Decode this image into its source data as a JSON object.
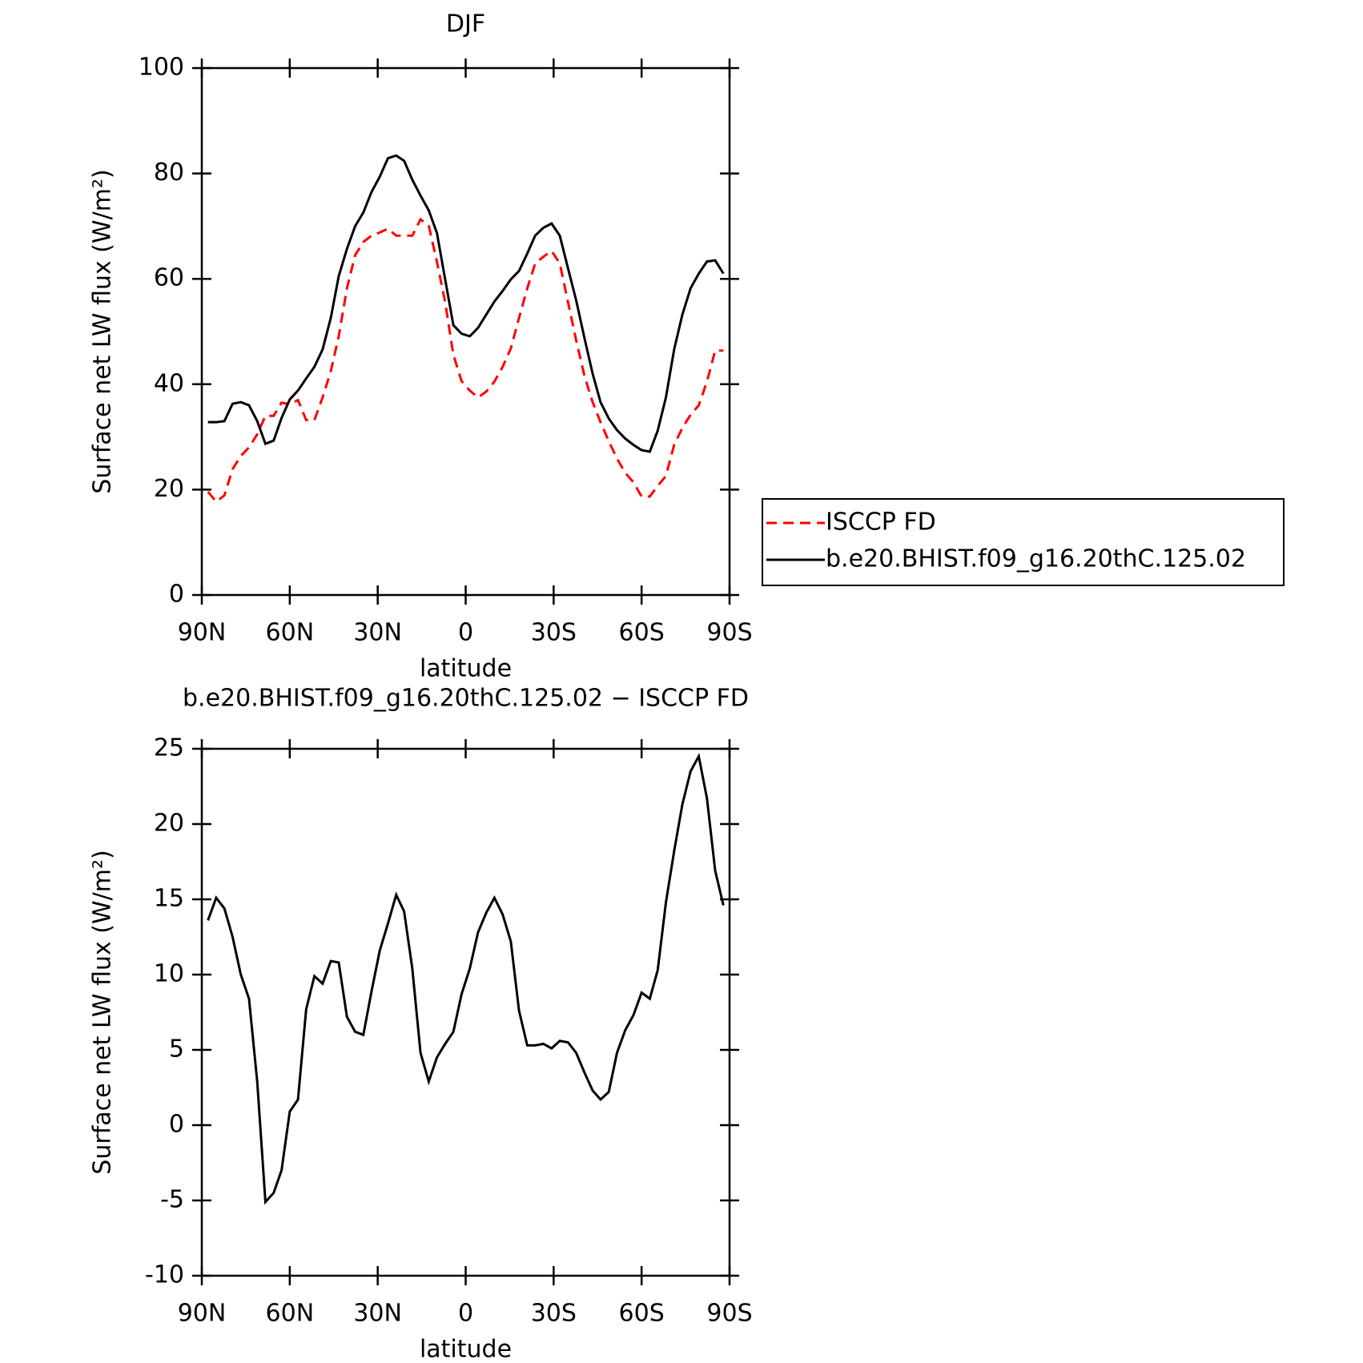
{
  "chart_data": [
    {
      "type": "line",
      "title": "DJF",
      "xlabel": "latitude",
      "ylabel": "Surface net LW flux (W/m²)",
      "x": [
        87.9,
        85.1,
        82.3,
        79.5,
        76.7,
        73.9,
        71.1,
        68.3,
        65.5,
        62.8,
        60.0,
        57.2,
        54.4,
        51.6,
        48.8,
        46.0,
        43.3,
        40.5,
        37.7,
        34.9,
        32.1,
        29.3,
        26.5,
        23.7,
        21.0,
        18.2,
        15.4,
        12.6,
        9.8,
        7.0,
        4.2,
        1.4,
        -1.4,
        -4.2,
        -7.0,
        -9.8,
        -12.6,
        -15.4,
        -18.2,
        -21.0,
        -23.7,
        -26.5,
        -29.3,
        -32.1,
        -34.9,
        -37.7,
        -40.5,
        -43.3,
        -46.0,
        -48.8,
        -51.6,
        -54.4,
        -57.2,
        -60.0,
        -62.8,
        -65.5,
        -68.3,
        -71.1,
        -73.9,
        -76.7,
        -79.5,
        -82.3,
        -85.1,
        -87.9
      ],
      "series": [
        {
          "name": "ISCCP FD",
          "color": "#ff0000",
          "dash": "dashed",
          "values": [
            19.6,
            17.7,
            18.9,
            23.9,
            26.4,
            28,
            30.5,
            34,
            34,
            36.5,
            36.2,
            37,
            33.2,
            33.2,
            37.5,
            42.5,
            49.1,
            58.2,
            64.5,
            67,
            68.2,
            68.8,
            69.5,
            68.2,
            68.2,
            68.2,
            71.3,
            70.1,
            63.2,
            55.6,
            45.6,
            40.6,
            38.8,
            37.5,
            38.6,
            40.5,
            43.3,
            46.8,
            52.6,
            58.2,
            62.9,
            64.2,
            65.3,
            62.9,
            55.6,
            48.3,
            41.6,
            36.6,
            32.8,
            29.2,
            25.9,
            23.2,
            21.4,
            18.7,
            18.7,
            20.7,
            22.6,
            28.5,
            31.7,
            34.2,
            36,
            40.5,
            46.4,
            46.4
          ]
        },
        {
          "name": "b.e20.BHIST.f09_g16.20thC.125.02",
          "color": "#000000",
          "dash": "solid",
          "values": [
            32.8,
            32.8,
            33,
            36.3,
            36.6,
            36,
            33,
            28.7,
            29.3,
            33.6,
            37.1,
            38.8,
            41.1,
            43.3,
            46.6,
            52.6,
            60.5,
            65.7,
            70,
            72.6,
            76.5,
            79.4,
            82.9,
            83.4,
            82.4,
            78.8,
            75.8,
            73,
            68.7,
            59.9,
            51.2,
            49.6,
            49.1,
            50.7,
            53.2,
            55.7,
            57.7,
            59.9,
            61.5,
            64.8,
            68.2,
            69.7,
            70.5,
            68.2,
            62,
            55.9,
            48.8,
            42,
            36.6,
            33.5,
            31.3,
            29.7,
            28.5,
            27.5,
            27.2,
            31.2,
            37.5,
            46.6,
            53.2,
            58.2,
            61,
            63.3,
            63.5,
            61
          ]
        }
      ],
      "xlim": [
        90,
        -90
      ],
      "xticks": [
        {
          "value": 90,
          "label": "90N"
        },
        {
          "value": 60,
          "label": "60N"
        },
        {
          "value": 30,
          "label": "30N"
        },
        0,
        {
          "value": -30,
          "label": "30S"
        },
        {
          "value": -60,
          "label": "60S"
        },
        {
          "value": -90,
          "label": "90S"
        }
      ],
      "ylim": [
        0,
        100
      ],
      "yticks": [
        0,
        20,
        40,
        60,
        80,
        100
      ],
      "grid": false,
      "legend": "outside-right"
    },
    {
      "type": "line",
      "title": "b.e20.BHIST.f09_g16.20thC.125.02 − ISCCP FD",
      "xlabel": "latitude",
      "ylabel": "Surface net LW flux (W/m²)",
      "x": [
        87.9,
        85.1,
        82.3,
        79.5,
        76.7,
        73.9,
        71.1,
        68.3,
        65.5,
        62.8,
        60.0,
        57.2,
        54.4,
        51.6,
        48.8,
        46.0,
        43.3,
        40.5,
        37.7,
        34.9,
        32.1,
        29.3,
        26.5,
        23.7,
        21.0,
        18.2,
        15.4,
        12.6,
        9.8,
        7.0,
        4.2,
        1.4,
        -1.4,
        -4.2,
        -7.0,
        -9.8,
        -12.6,
        -15.4,
        -18.2,
        -21.0,
        -23.7,
        -26.5,
        -29.3,
        -32.1,
        -34.9,
        -37.7,
        -40.5,
        -43.3,
        -46.0,
        -48.8,
        -51.6,
        -54.4,
        -57.2,
        -60.0,
        -62.8,
        -65.5,
        -68.3,
        -71.1,
        -73.9,
        -76.7,
        -79.5,
        -82.3,
        -85.1,
        -87.9
      ],
      "series": [
        {
          "color": "#000000",
          "dash": "solid",
          "values": [
            13.6,
            15.1,
            14.4,
            12.5,
            10,
            8.4,
            2.9,
            -5.1,
            -4.5,
            -3,
            0.9,
            1.7,
            7.7,
            9.9,
            9.4,
            10.9,
            10.8,
            7.2,
            6.2,
            6,
            8.9,
            11.6,
            13.4,
            15.3,
            14.2,
            10.4,
            4.8,
            2.9,
            4.5,
            5.4,
            6.2,
            8.7,
            10.4,
            12.8,
            14.1,
            15.1,
            14,
            12.2,
            7.6,
            5.3,
            5.3,
            5.4,
            5.1,
            5.6,
            5.5,
            4.8,
            3.5,
            2.3,
            1.7,
            2.2,
            4.8,
            6.3,
            7.3,
            8.8,
            8.4,
            10.3,
            14.8,
            18.2,
            21.3,
            23.5,
            24.5,
            21.7,
            16.9,
            14.6
          ]
        }
      ],
      "xlim": [
        90,
        -90
      ],
      "xticks": [
        {
          "value": 90,
          "label": "90N"
        },
        {
          "value": 60,
          "label": "60N"
        },
        {
          "value": 30,
          "label": "30N"
        },
        0,
        {
          "value": -30,
          "label": "30S"
        },
        {
          "value": -60,
          "label": "60S"
        },
        {
          "value": -90,
          "label": "90S"
        }
      ],
      "ylim": [
        -10,
        25
      ],
      "yticks": [
        -10,
        -5,
        0,
        5,
        10,
        15,
        20,
        25
      ],
      "grid": false
    }
  ]
}
